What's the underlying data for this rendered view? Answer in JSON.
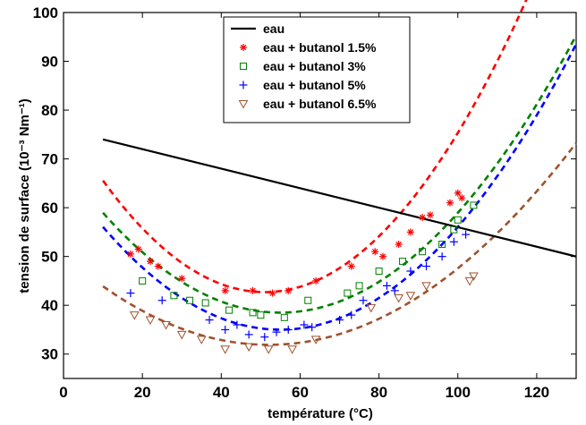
{
  "chart_data": {
    "type": "scatter",
    "xlabel": "température (°C)",
    "ylabel": "tension de surface (10⁻³ Nm⁻¹)",
    "xlim": [
      0,
      130
    ],
    "ylim": [
      25,
      100
    ],
    "xticks": [
      0,
      20,
      40,
      60,
      80,
      100,
      120
    ],
    "yticks": [
      30,
      40,
      50,
      60,
      70,
      80,
      90,
      100
    ],
    "grid": false,
    "legend_position": "top-center",
    "series": [
      {
        "name": "eau",
        "color": "#000000",
        "marker": "none",
        "line": "solid",
        "points": [
          [
            10,
            74
          ],
          [
            130,
            50
          ]
        ]
      },
      {
        "name": "eau + butanol 1.5%",
        "color": "#ff0000",
        "marker": "asterisk",
        "line": "none",
        "points": [
          [
            17,
            50.5
          ],
          [
            19,
            51.5
          ],
          [
            22,
            49
          ],
          [
            24,
            48
          ],
          [
            30,
            45.5
          ],
          [
            41,
            43
          ],
          [
            48,
            43
          ],
          [
            53,
            42.5
          ],
          [
            57,
            43
          ],
          [
            64,
            45
          ],
          [
            73,
            48
          ],
          [
            79,
            51
          ],
          [
            81,
            50
          ],
          [
            85,
            52.5
          ],
          [
            88,
            55
          ],
          [
            91,
            58
          ],
          [
            93,
            58.5
          ],
          [
            98,
            61
          ],
          [
            100,
            63
          ],
          [
            101,
            62
          ]
        ]
      },
      {
        "name": "eau + butanol 3%",
        "color": "#008000",
        "marker": "square",
        "line": "none",
        "points": [
          [
            20,
            45
          ],
          [
            28,
            42
          ],
          [
            32,
            41
          ],
          [
            36,
            40.5
          ],
          [
            42,
            39
          ],
          [
            48,
            38.5
          ],
          [
            50,
            38
          ],
          [
            56,
            37.5
          ],
          [
            62,
            41
          ],
          [
            72,
            42.5
          ],
          [
            75,
            44
          ],
          [
            80,
            47
          ],
          [
            86,
            49
          ],
          [
            91,
            51
          ],
          [
            96,
            52.5
          ],
          [
            99,
            55.5
          ],
          [
            100,
            57.5
          ],
          [
            104,
            60.5
          ]
        ]
      },
      {
        "name": "eau + butanol 5%",
        "color": "#0000ff",
        "marker": "plus",
        "line": "none",
        "points": [
          [
            17,
            42.5
          ],
          [
            25,
            41
          ],
          [
            37,
            37
          ],
          [
            41,
            35
          ],
          [
            44,
            36
          ],
          [
            47,
            34
          ],
          [
            51,
            33.5
          ],
          [
            54,
            34.5
          ],
          [
            57,
            35
          ],
          [
            61,
            36
          ],
          [
            63,
            35.5
          ],
          [
            70,
            37
          ],
          [
            73,
            38
          ],
          [
            76,
            41
          ],
          [
            82,
            44
          ],
          [
            84,
            43
          ],
          [
            88,
            47
          ],
          [
            92,
            48
          ],
          [
            96,
            50
          ],
          [
            99,
            53
          ],
          [
            102,
            54.5
          ]
        ]
      },
      {
        "name": "eau + butanol 6.5%",
        "color": "#a0522d",
        "marker": "triangle-down",
        "line": "none",
        "points": [
          [
            18,
            38
          ],
          [
            22,
            37
          ],
          [
            26,
            36
          ],
          [
            30,
            34
          ],
          [
            35,
            33
          ],
          [
            41,
            31
          ],
          [
            47,
            31.5
          ],
          [
            52,
            31
          ],
          [
            58,
            31
          ],
          [
            64,
            33
          ],
          [
            78,
            39.5
          ],
          [
            85,
            41.5
          ],
          [
            88,
            42
          ],
          [
            92,
            44
          ],
          [
            103,
            45
          ],
          [
            104,
            46
          ]
        ]
      }
    ],
    "fit_curves": [
      {
        "name": "fit 1.5%",
        "color": "#ff0000",
        "dash": true,
        "coef": [
          0.0136,
          51,
          42.7
        ],
        "xrange": [
          10,
          130
        ]
      },
      {
        "name": "fit 3%",
        "color": "#008000",
        "dash": true,
        "coef": [
          0.0101,
          55,
          38.5
        ],
        "xrange": [
          10,
          130
        ]
      },
      {
        "name": "fit 5%",
        "color": "#0000ff",
        "dash": true,
        "coef": [
          0.0104,
          55,
          35
        ],
        "xrange": [
          10,
          130
        ]
      },
      {
        "name": "fit 6.5%",
        "color": "#a0522d",
        "dash": true,
        "coef": [
          0.0068,
          52,
          31.9
        ],
        "xrange": [
          10,
          130
        ]
      }
    ]
  }
}
